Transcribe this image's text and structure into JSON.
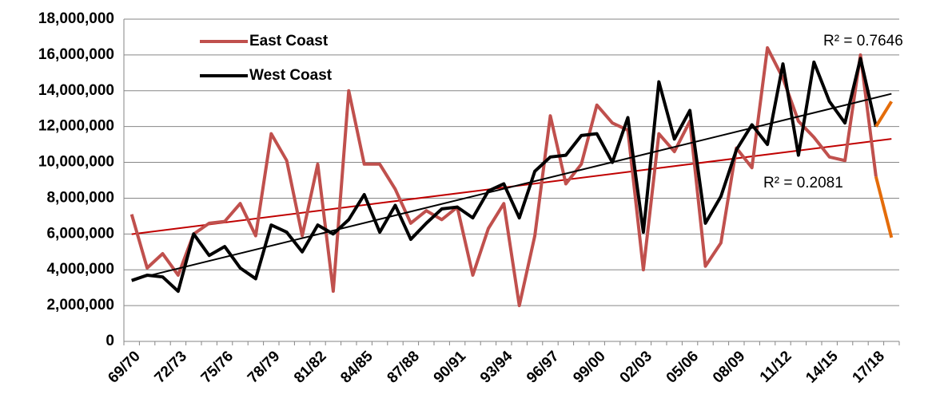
{
  "chart_data": {
    "type": "line",
    "categories": [
      "69/70",
      null,
      null,
      "72/73",
      null,
      null,
      "75/76",
      null,
      null,
      "78/79",
      null,
      null,
      "81/82",
      null,
      null,
      "84/85",
      null,
      null,
      "87/88",
      null,
      null,
      "90/91",
      null,
      null,
      "93/94",
      null,
      null,
      "96/97",
      null,
      null,
      "99/00",
      null,
      null,
      "02/03",
      null,
      null,
      "05/06",
      null,
      null,
      "08/09",
      null,
      null,
      "11/12",
      null,
      null,
      "14/15",
      null,
      null,
      "17/18",
      null
    ],
    "series": [
      {
        "name": "East Coast",
        "color": "#c0504d",
        "trend_color": "#c00000",
        "trend_label": "R² = 0.2081",
        "values": [
          7100000,
          4100000,
          4900000,
          3700000,
          6000000,
          6600000,
          6700000,
          7700000,
          5900000,
          11600000,
          10100000,
          5900000,
          9900000,
          2800000,
          14000000,
          9900000,
          9900000,
          8500000,
          6600000,
          7300000,
          6800000,
          7500000,
          3700000,
          6300000,
          7700000,
          2000000,
          5900000,
          12600000,
          8800000,
          9900000,
          13200000,
          12200000,
          11800000,
          4000000,
          11600000,
          10600000,
          12300000,
          4200000,
          5500000,
          10800000,
          9700000,
          16400000,
          14700000,
          12300000,
          11400000,
          10300000,
          10100000,
          16000000,
          9200000,
          5800000
        ]
      },
      {
        "name": "West Coast",
        "color": "#000000",
        "trend_color": "#000000",
        "trend_label": "R² = 0.7646",
        "values": [
          3400000,
          3700000,
          3600000,
          2800000,
          6000000,
          4800000,
          5300000,
          4100000,
          3500000,
          6500000,
          6100000,
          5000000,
          6500000,
          6000000,
          6800000,
          8200000,
          6100000,
          7600000,
          5700000,
          6600000,
          7400000,
          7500000,
          6900000,
          8400000,
          8800000,
          6900000,
          9500000,
          10300000,
          10400000,
          11500000,
          11600000,
          10000000,
          12500000,
          6100000,
          14500000,
          11300000,
          12900000,
          6600000,
          8100000,
          10700000,
          12100000,
          11000000,
          15500000,
          10400000,
          15600000,
          13400000,
          12200000,
          15800000,
          12000000,
          13400000
        ]
      }
    ],
    "tail_start": 48,
    "tail_color": "#e46c0a",
    "ylim": [
      0,
      18000000
    ],
    "yticks": [
      0,
      {
        "value": 2000000,
        "label": "2,000,000"
      },
      {
        "value": 4000000,
        "label": "4,000,000"
      },
      {
        "value": 6000000,
        "label": "6,000,000"
      },
      {
        "value": 8000000,
        "label": "8,000,000"
      },
      {
        "value": 10000000,
        "label": "10,000,000"
      },
      {
        "value": 12000000,
        "label": "12,000,000"
      },
      {
        "value": 14000000,
        "label": "14,000,000"
      },
      {
        "value": 16000000,
        "label": "16,000,000"
      },
      {
        "value": 18000000,
        "label": "18,000,000"
      }
    ],
    "grid": true,
    "legend": "top-left"
  }
}
